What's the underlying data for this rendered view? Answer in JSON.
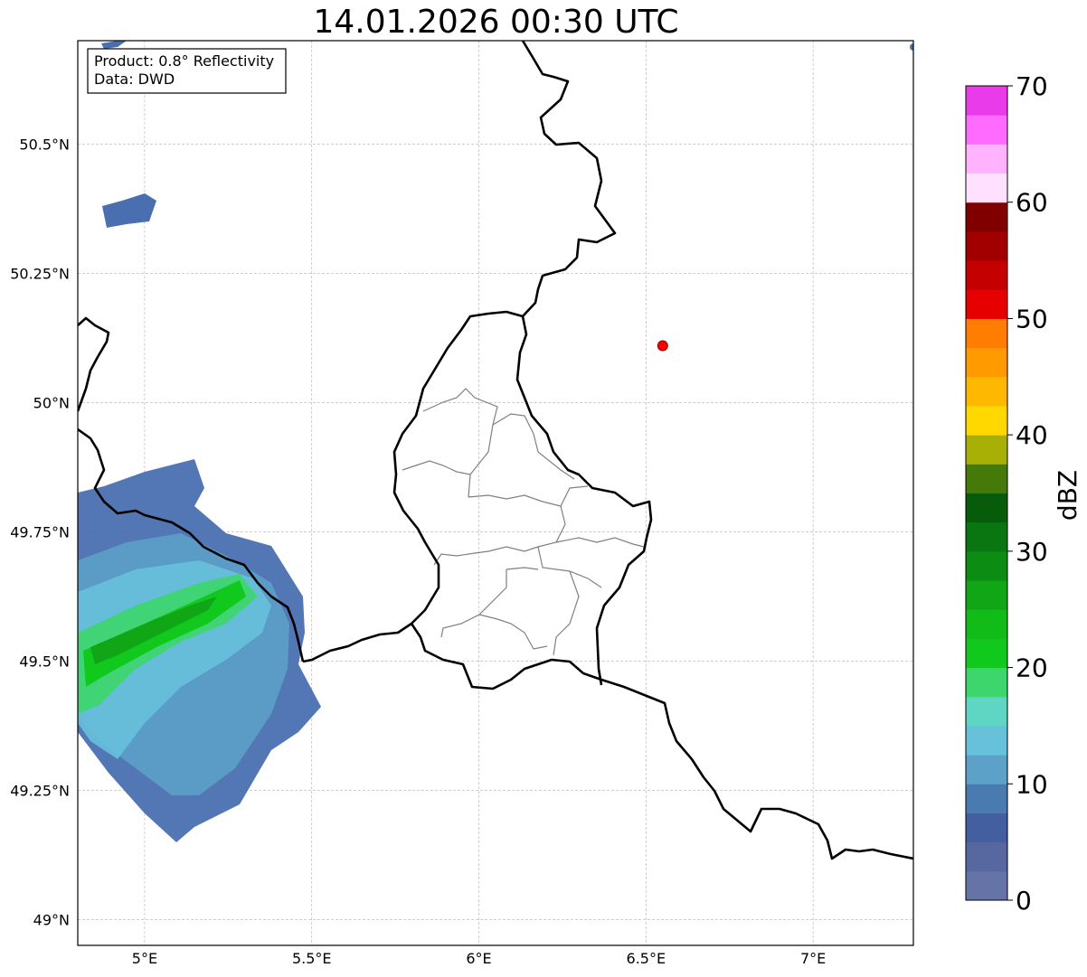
{
  "title": "14.01.2026 00:30 UTC",
  "info_box": {
    "line1": "Product: 0.8° Reflectivity",
    "line2": "Data: DWD"
  },
  "map": {
    "lon_range": [
      4.8,
      7.3
    ],
    "lat_range": [
      48.95,
      50.7
    ],
    "x_ticks": [
      {
        "value": 5.0,
        "label": "5°E"
      },
      {
        "value": 5.5,
        "label": "5.5°E"
      },
      {
        "value": 6.0,
        "label": "6°E"
      },
      {
        "value": 6.5,
        "label": "6.5°E"
      },
      {
        "value": 7.0,
        "label": "7°E"
      }
    ],
    "y_ticks": [
      {
        "value": 49.0,
        "label": "49°N"
      },
      {
        "value": 49.25,
        "label": "49.25°N"
      },
      {
        "value": 49.5,
        "label": "49.5°N"
      },
      {
        "value": 49.75,
        "label": "49.75°N"
      },
      {
        "value": 50.0,
        "label": "50°N"
      },
      {
        "value": 50.25,
        "label": "50.25°N"
      },
      {
        "value": 50.5,
        "label": "50.5°N"
      }
    ],
    "grid": true,
    "radar_site": {
      "lon": 6.55,
      "lat": 50.11,
      "color": "#ff0000"
    }
  },
  "colorbar": {
    "label": "dBZ",
    "min": 0,
    "max": 70,
    "step": 2.5,
    "tick_labels": [
      "0",
      "10",
      "20",
      "30",
      "40",
      "50",
      "60",
      "70"
    ],
    "colors": [
      "#6673a6",
      "#5768a0",
      "#435f9f",
      "#4a7bb0",
      "#5ba1c8",
      "#67c1db",
      "#5fd6c4",
      "#3dd66c",
      "#11c91c",
      "#11bb18",
      "#10a616",
      "#0d8c14",
      "#0a7612",
      "#075c0c",
      "#457a0b",
      "#a9b005",
      "#ffd800",
      "#ffb800",
      "#ff9b00",
      "#ff7d00",
      "#e60000",
      "#c40000",
      "#a20000",
      "#800000",
      "#ffe0ff",
      "#ffb3ff",
      "#ff6bff",
      "#e93be9"
    ]
  }
}
